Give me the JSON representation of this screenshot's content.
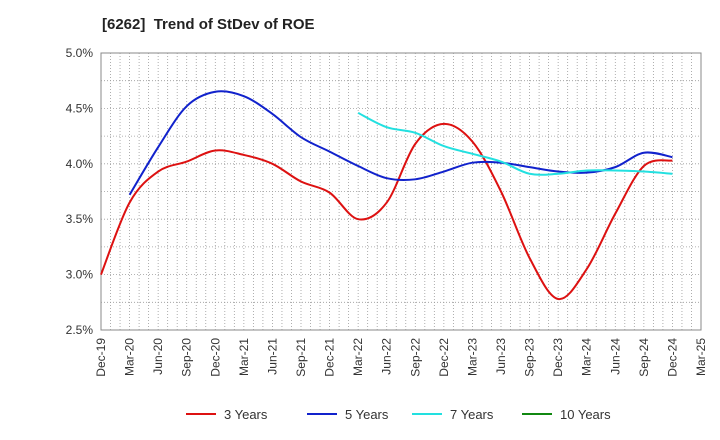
{
  "chart_data": {
    "type": "line",
    "title": "[6262]  Trend of StDev of ROE",
    "xlabel": "",
    "ylabel": "",
    "ylim": [
      0.025,
      0.05
    ],
    "y_ticks": [
      0.025,
      0.03,
      0.035,
      0.04,
      0.045,
      0.05
    ],
    "y_tick_labels": [
      "2.5%",
      "3.0%",
      "3.5%",
      "4.0%",
      "4.5%",
      "5.0%"
    ],
    "x_tick_labels": [
      "Dec-19",
      "Mar-20",
      "Jun-20",
      "Sep-20",
      "Dec-20",
      "Mar-21",
      "Jun-21",
      "Sep-21",
      "Dec-21",
      "Mar-22",
      "Jun-22",
      "Sep-22",
      "Dec-22",
      "Mar-23",
      "Jun-23",
      "Sep-23",
      "Dec-23",
      "Mar-24",
      "Jun-24",
      "Sep-24",
      "Dec-24",
      "Mar-25"
    ],
    "grid": true,
    "legend_position": "bottom",
    "series": [
      {
        "name": "3 Years",
        "color": "#dd1111",
        "x": [
          "Dec-19",
          "Mar-20",
          "Jun-20",
          "Sep-20",
          "Dec-20",
          "Mar-21",
          "Jun-21",
          "Sep-21",
          "Dec-21",
          "Mar-22",
          "Jun-22",
          "Sep-22",
          "Dec-22",
          "Mar-23",
          "Jun-23",
          "Sep-23",
          "Dec-23",
          "Mar-24",
          "Jun-24",
          "Sep-24",
          "Dec-24"
        ],
        "values": [
          0.03,
          0.0365,
          0.0393,
          0.0402,
          0.0412,
          0.0408,
          0.04,
          0.0384,
          0.0374,
          0.035,
          0.0365,
          0.0418,
          0.0436,
          0.042,
          0.0375,
          0.0315,
          0.0278,
          0.0305,
          0.0355,
          0.0398,
          0.0403
        ]
      },
      {
        "name": "5 Years",
        "color": "#1122cc",
        "x": [
          "Mar-20",
          "Jun-20",
          "Sep-20",
          "Dec-20",
          "Mar-21",
          "Jun-21",
          "Sep-21",
          "Dec-21",
          "Mar-22",
          "Jun-22",
          "Sep-22",
          "Dec-22",
          "Mar-23",
          "Jun-23",
          "Sep-23",
          "Dec-23",
          "Mar-24",
          "Jun-24",
          "Sep-24",
          "Dec-24"
        ],
        "values": [
          0.0372,
          0.0415,
          0.0452,
          0.0465,
          0.0461,
          0.0445,
          0.0424,
          0.0411,
          0.0398,
          0.0387,
          0.0386,
          0.0393,
          0.0401,
          0.0401,
          0.0397,
          0.0393,
          0.0392,
          0.0397,
          0.041,
          0.0406
        ]
      },
      {
        "name": "7 Years",
        "color": "#22e0e0",
        "x": [
          "Mar-22",
          "Jun-22",
          "Sep-22",
          "Dec-22",
          "Mar-23",
          "Jun-23",
          "Sep-23",
          "Dec-23",
          "Mar-24",
          "Jun-24",
          "Sep-24",
          "Dec-24"
        ],
        "values": [
          0.0446,
          0.0433,
          0.0428,
          0.0416,
          0.0409,
          0.0402,
          0.0391,
          0.0391,
          0.0394,
          0.0394,
          0.0393,
          0.0391
        ]
      },
      {
        "name": "10 Years",
        "color": "#118811",
        "x": [],
        "values": []
      }
    ]
  }
}
